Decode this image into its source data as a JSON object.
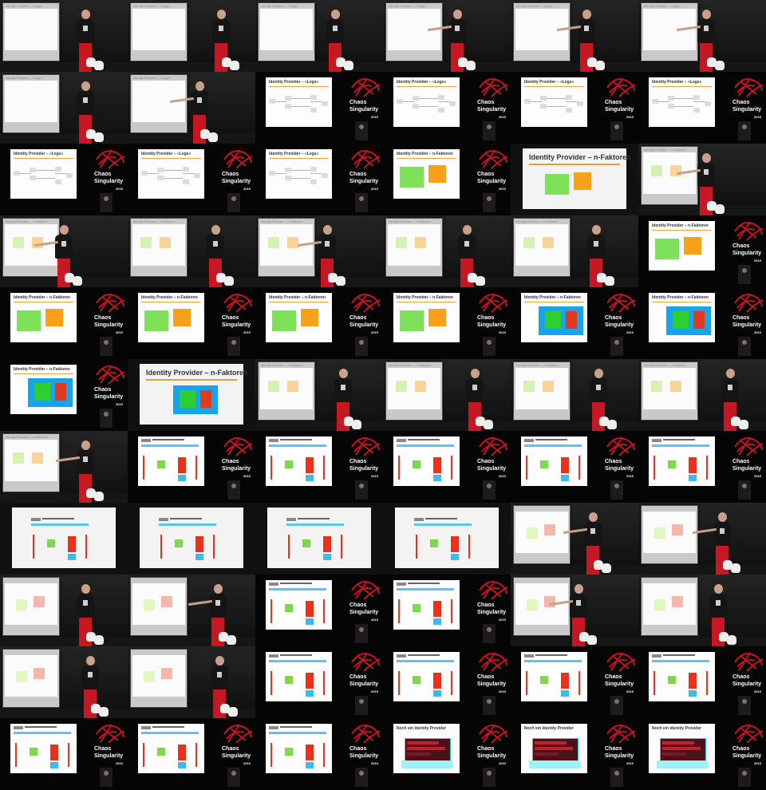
{
  "image_grid": {
    "columns": 6,
    "rows": 11,
    "brand": {
      "line1": "Chaos",
      "line2": "Singularity",
      "year": "2019"
    },
    "slide_titles": {
      "cam_legs": "Identity Provider – «Legs»",
      "cam_nf": "Identity Provider – n-Faktoren",
      "legs": "Identity Provider – «Legs»",
      "nf": "Identity Provider – n-Faktoren",
      "noch": "Noch ein Identity Provider"
    },
    "tiles": [
      {
        "kind": "cam",
        "slide": "cam_legs",
        "person_x": 92,
        "arm": 0
      },
      {
        "kind": "cam",
        "slide": "cam_legs",
        "person_x": 102,
        "arm": 0
      },
      {
        "kind": "cam",
        "slide": "cam_legs",
        "person_x": 85,
        "arm": 0
      },
      {
        "kind": "cam",
        "slide": "cam_legs",
        "person_x": 78,
        "arm": 1
      },
      {
        "kind": "cam",
        "slide": "cam_legs",
        "person_x": 80,
        "arm": 1
      },
      {
        "kind": "cam",
        "slide": "cam_legs",
        "person_x": 70,
        "arm": 1
      },
      {
        "kind": "cam",
        "slide": "cam_legs",
        "person_x": 92,
        "arm": 0
      },
      {
        "kind": "cam",
        "slide": "cam_legs",
        "person_x": 75,
        "arm": 1
      },
      {
        "kind": "ovl",
        "content": "legs"
      },
      {
        "kind": "ovl",
        "content": "legs"
      },
      {
        "kind": "ovl",
        "content": "legs"
      },
      {
        "kind": "ovl",
        "content": "legs"
      },
      {
        "kind": "ovl",
        "content": "legs"
      },
      {
        "kind": "ovl",
        "content": "legs"
      },
      {
        "kind": "ovl",
        "content": "legs"
      },
      {
        "kind": "ovl",
        "content": "nf"
      },
      {
        "kind": "zoom",
        "content": "nf"
      },
      {
        "kind": "cam",
        "slide": "cam_nf",
        "person_x": 70,
        "arm": 1
      },
      {
        "kind": "cam",
        "slide": "cam_nf",
        "person_x": 65,
        "arm": 1
      },
      {
        "kind": "cam",
        "slide": "cam_nf",
        "person_x": 95,
        "arm": 0
      },
      {
        "kind": "cam",
        "slide": "cam_nf",
        "person_x": 75,
        "arm": 1
      },
      {
        "kind": "cam",
        "slide": "cam_nf",
        "person_x": 90,
        "arm": 0
      },
      {
        "kind": "cam",
        "slide": "cam_nf",
        "person_x": 92,
        "arm": 0
      },
      {
        "kind": "ovl",
        "content": "nf"
      },
      {
        "kind": "ovl",
        "content": "nf"
      },
      {
        "kind": "ovl",
        "content": "nf"
      },
      {
        "kind": "ovl",
        "content": "nf"
      },
      {
        "kind": "ovl",
        "content": "nf"
      },
      {
        "kind": "ovl",
        "content": "nf_blue"
      },
      {
        "kind": "ovl",
        "content": "nf_blue"
      },
      {
        "kind": "ovl",
        "content": "nf_blue"
      },
      {
        "kind": "zoom",
        "content": "nf_blue"
      },
      {
        "kind": "cam",
        "slide": "cam_nf",
        "person_x": 95,
        "arm": 0
      },
      {
        "kind": "cam",
        "slide": "cam_nf",
        "person_x": 100,
        "arm": 0
      },
      {
        "kind": "cam",
        "slide": "cam_nf",
        "person_x": 95,
        "arm": 0
      },
      {
        "kind": "cam",
        "slide": "cam_nf",
        "person_x": 100,
        "arm": 0
      },
      {
        "kind": "cam",
        "slide": "cam_nf",
        "person_x": 92,
        "arm": 1
      },
      {
        "kind": "ovl",
        "content": "seq"
      },
      {
        "kind": "ovl",
        "content": "seq"
      },
      {
        "kind": "ovl",
        "content": "seq"
      },
      {
        "kind": "ovl",
        "content": "seq"
      },
      {
        "kind": "ovl",
        "content": "seq"
      },
      {
        "kind": "zoom",
        "content": "seq"
      },
      {
        "kind": "zoom",
        "content": "seq"
      },
      {
        "kind": "zoom",
        "content": "seq"
      },
      {
        "kind": "zoom",
        "content": "seq"
      },
      {
        "kind": "cam",
        "slide": "cam_seq",
        "person_x": 88,
        "arm": 1
      },
      {
        "kind": "cam",
        "slide": "cam_seq",
        "person_x": 90,
        "arm": 1
      },
      {
        "kind": "cam",
        "slide": "cam_seq",
        "person_x": 92,
        "arm": 0
      },
      {
        "kind": "cam",
        "slide": "cam_seq",
        "person_x": 98,
        "arm": 1
      },
      {
        "kind": "ovl",
        "content": "seq"
      },
      {
        "kind": "ovl",
        "content": "seq"
      },
      {
        "kind": "cam",
        "slide": "cam_seq",
        "person_x": 70,
        "arm": 1
      },
      {
        "kind": "cam",
        "slide": "cam_seq",
        "person_x": 85,
        "arm": 0
      },
      {
        "kind": "cam",
        "slide": "cam_seq",
        "person_x": 98,
        "arm": 0
      },
      {
        "kind": "cam",
        "slide": "cam_seq",
        "person_x": 100,
        "arm": 0
      },
      {
        "kind": "ovl",
        "content": "seq"
      },
      {
        "kind": "ovl",
        "content": "seq"
      },
      {
        "kind": "ovl",
        "content": "seq"
      },
      {
        "kind": "ovl",
        "content": "seq"
      },
      {
        "kind": "ovl",
        "content": "seq"
      },
      {
        "kind": "ovl",
        "content": "seq"
      },
      {
        "kind": "ovl",
        "content": "seq"
      },
      {
        "kind": "ovl",
        "content": "noch"
      },
      {
        "kind": "ovl",
        "content": "noch"
      },
      {
        "kind": "ovl",
        "content": "noch"
      }
    ]
  }
}
